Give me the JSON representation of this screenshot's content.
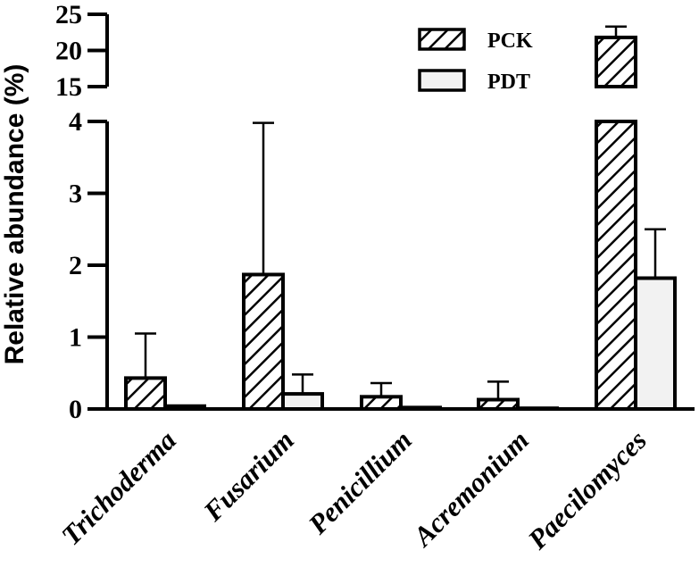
{
  "chart_data": {
    "type": "bar",
    "ylabel": "Relative abundance (%)",
    "xlabel": "",
    "categories": [
      "Trichoderma",
      "Fusarium",
      "Penicillium",
      "Acremonium",
      "Paecilomyces"
    ],
    "series": [
      {
        "name": "PCK",
        "values": [
          0.43,
          1.87,
          0.17,
          0.13,
          21.8
        ],
        "errors": [
          0.62,
          2.11,
          0.19,
          0.25,
          1.5
        ]
      },
      {
        "name": "PDT",
        "values": [
          0.04,
          0.21,
          0.02,
          0.01,
          1.82
        ],
        "errors": [
          0.0,
          0.27,
          0.0,
          0.0,
          0.68
        ]
      }
    ],
    "axis_break": true,
    "ylim_lower": [
      0,
      4
    ],
    "ylim_upper": [
      15,
      25
    ],
    "yticks_lower": [
      "0",
      "1",
      "2",
      "3",
      "4"
    ],
    "yticks_upper": [
      "15",
      "20",
      "25"
    ],
    "legend_position": "top-right",
    "grid": false,
    "colors": {
      "PCK": "#ffffff",
      "PDT": "#f2f2f2",
      "stroke": "#000000"
    }
  }
}
